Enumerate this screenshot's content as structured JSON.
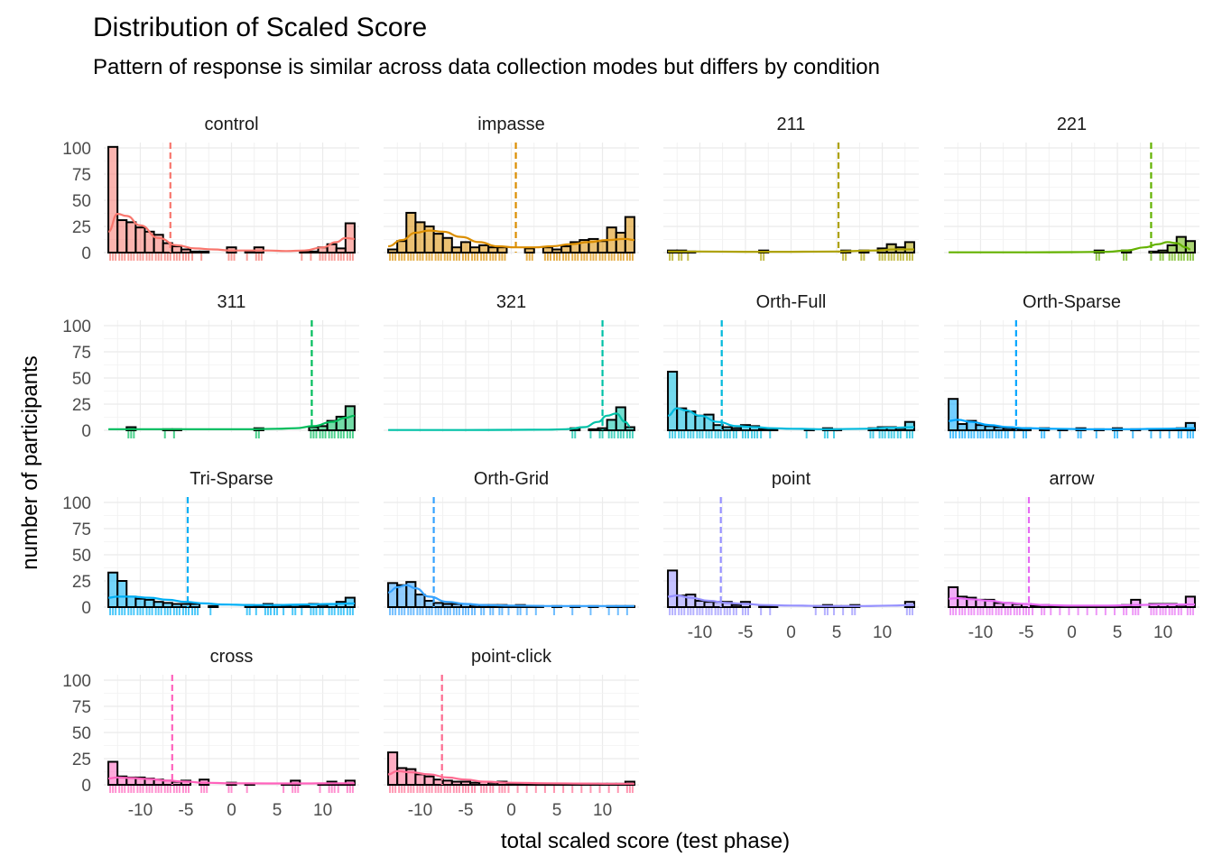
{
  "title": "Distribution of Scaled Score",
  "subtitle": "Pattern of response is similar across data collection modes but differs by condition",
  "xlabel": "total scaled score (test phase)",
  "ylabel": "number of participants",
  "chart_data": {
    "type": "bar",
    "description": "Faceted histograms with density curve, rug marks and dashed mean line per condition",
    "xlim": [
      -14,
      14
    ],
    "ylim": [
      0,
      100
    ],
    "x_ticks": [
      -10,
      -5,
      0,
      5,
      10
    ],
    "x_tick_labels": [
      "-10",
      "-5",
      "0",
      "5",
      "10"
    ],
    "y_ticks": [
      0,
      25,
      50,
      75,
      100
    ],
    "y_tick_labels": [
      "0",
      "25",
      "50",
      "75",
      "100"
    ],
    "bin_centers": [
      -13,
      -12,
      -11,
      -10,
      -9,
      -8,
      -7,
      -6,
      -5,
      -4,
      -3,
      -2,
      -1,
      0,
      1,
      2,
      3,
      4,
      5,
      6,
      7,
      8,
      9,
      10,
      11,
      12,
      13
    ],
    "grid": true,
    "legend": "none",
    "facets": [
      {
        "name": "control",
        "color": "#F8766D",
        "mean": -6.7,
        "counts": [
          101,
          31,
          29,
          24,
          20,
          17,
          9,
          6,
          3,
          1,
          1,
          0,
          0,
          5,
          0,
          1,
          5,
          0,
          0,
          0,
          0,
          1,
          1,
          5,
          8,
          4,
          28
        ],
        "density": [
          [
            -13.5,
            20
          ],
          [
            -12.5,
            37
          ],
          [
            -11.5,
            35
          ],
          [
            -10,
            26
          ],
          [
            -8,
            14
          ],
          [
            -6,
            7
          ],
          [
            -4,
            4
          ],
          [
            -2,
            3
          ],
          [
            0,
            2
          ],
          [
            2,
            2
          ],
          [
            4,
            2
          ],
          [
            6,
            1.5
          ],
          [
            8,
            2
          ],
          [
            10,
            5
          ],
          [
            11.5,
            10
          ],
          [
            12.5,
            14
          ],
          [
            13.5,
            13
          ]
        ]
      },
      {
        "name": "impasse",
        "color": "#DB8E00",
        "mean": 0.5,
        "counts": [
          3,
          11,
          38,
          29,
          25,
          18,
          14,
          5,
          10,
          5,
          7,
          5,
          5,
          0,
          0,
          4,
          0,
          5,
          3,
          6,
          10,
          12,
          13,
          11,
          24,
          19,
          34
        ],
        "density": [
          [
            -13.5,
            6
          ],
          [
            -12,
            12
          ],
          [
            -10.5,
            19
          ],
          [
            -9,
            21
          ],
          [
            -7.5,
            20
          ],
          [
            -5.5,
            15
          ],
          [
            -3.5,
            10
          ],
          [
            -1.5,
            6
          ],
          [
            0.5,
            5
          ],
          [
            2.5,
            5
          ],
          [
            4.5,
            6
          ],
          [
            6.5,
            8
          ],
          [
            8.5,
            10
          ],
          [
            10.5,
            12
          ],
          [
            12.5,
            13
          ],
          [
            13.5,
            12
          ]
        ]
      },
      {
        "name": "211",
        "color": "#AEA200",
        "mean": 5.2,
        "counts": [
          2,
          2,
          1,
          0,
          0,
          0,
          0,
          0,
          0,
          0,
          2,
          0,
          0,
          0,
          0,
          0,
          0,
          0,
          0,
          2,
          0,
          2,
          0,
          4,
          8,
          5,
          10
        ],
        "density": [
          [
            -13.5,
            1
          ],
          [
            -10,
            1
          ],
          [
            -5,
            0.8
          ],
          [
            0,
            0.8
          ],
          [
            5,
            1
          ],
          [
            9,
            2
          ],
          [
            11.5,
            3
          ],
          [
            13.5,
            3
          ]
        ]
      },
      {
        "name": "221",
        "color": "#64B200",
        "mean": 8.7,
        "counts": [
          0,
          0,
          0,
          0,
          0,
          0,
          0,
          0,
          0,
          0,
          0,
          0,
          0,
          0,
          0,
          0,
          2,
          0,
          0,
          2,
          0,
          0,
          1,
          2,
          7,
          15,
          11
        ],
        "density": [
          [
            -13.5,
            0.3
          ],
          [
            -5,
            0.3
          ],
          [
            0,
            0.4
          ],
          [
            4,
            0.8
          ],
          [
            6,
            2
          ],
          [
            8,
            5
          ],
          [
            9.5,
            8
          ],
          [
            10.5,
            10
          ],
          [
            11.5,
            9
          ],
          [
            12.5,
            5
          ],
          [
            13,
            3
          ]
        ]
      },
      {
        "name": "311",
        "color": "#00BD5C",
        "mean": 8.8,
        "counts": [
          0,
          0,
          3,
          0,
          0,
          0,
          1,
          1,
          0,
          0,
          0,
          0,
          0,
          0,
          0,
          0,
          2,
          0,
          0,
          0,
          0,
          0,
          3,
          4,
          9,
          13,
          23
        ],
        "density": [
          [
            -13.5,
            1
          ],
          [
            -10,
            1
          ],
          [
            -6,
            1
          ],
          [
            -2,
            1
          ],
          [
            2,
            1
          ],
          [
            5,
            1.5
          ],
          [
            7,
            2
          ],
          [
            9,
            4
          ],
          [
            11,
            8
          ],
          [
            12.5,
            12
          ],
          [
            13.5,
            14
          ]
        ]
      },
      {
        "name": "321",
        "color": "#00C1A7",
        "mean": 10,
        "counts": [
          0,
          0,
          0,
          0,
          0,
          0,
          0,
          0,
          0,
          0,
          0,
          0,
          0,
          0,
          0,
          0,
          0,
          0,
          0,
          0,
          2,
          0,
          1,
          2,
          10,
          22,
          3
        ],
        "density": [
          [
            -13.5,
            0.3
          ],
          [
            -5,
            0.3
          ],
          [
            0,
            0.4
          ],
          [
            4,
            0.6
          ],
          [
            6,
            1
          ],
          [
            8,
            3
          ],
          [
            9.5,
            8
          ],
          [
            10.5,
            14
          ],
          [
            11.5,
            16
          ],
          [
            12.5,
            8
          ],
          [
            13,
            4
          ]
        ]
      },
      {
        "name": "Orth-Full",
        "color": "#00BADE",
        "mean": -7.6,
        "counts": [
          56,
          21,
          18,
          14,
          15,
          5,
          3,
          2,
          5,
          4,
          1,
          1,
          0,
          0,
          0,
          1,
          0,
          2,
          1,
          0,
          0,
          0,
          2,
          3,
          3,
          2,
          8
        ],
        "density": [
          [
            -13.5,
            14
          ],
          [
            -12.5,
            21
          ],
          [
            -11.5,
            19
          ],
          [
            -10,
            14
          ],
          [
            -8,
            8
          ],
          [
            -6,
            4
          ],
          [
            -4,
            3
          ],
          [
            -2,
            2
          ],
          [
            0,
            1.5
          ],
          [
            4,
            1
          ],
          [
            8,
            1.5
          ],
          [
            11,
            2.5
          ],
          [
            13.5,
            3
          ]
        ]
      },
      {
        "name": "Orth-Sparse",
        "color": "#00A6FF",
        "mean": -6.1,
        "counts": [
          30,
          6,
          9,
          5,
          4,
          3,
          2,
          1,
          2,
          0,
          2,
          0,
          1,
          0,
          2,
          0,
          1,
          0,
          2,
          0,
          1,
          0,
          1,
          1,
          1,
          2,
          7
        ],
        "density": [
          [
            -13.5,
            9
          ],
          [
            -12.5,
            10
          ],
          [
            -11,
            8
          ],
          [
            -9,
            5
          ],
          [
            -7,
            3
          ],
          [
            -5,
            2
          ],
          [
            -2,
            1.5
          ],
          [
            2,
            1
          ],
          [
            6,
            1
          ],
          [
            10,
            1.5
          ],
          [
            13.5,
            2
          ]
        ]
      },
      {
        "name": "Tri-Sparse",
        "color": "#00B0F6",
        "mean": -4.8,
        "counts": [
          33,
          25,
          10,
          8,
          7,
          5,
          4,
          3,
          3,
          3,
          0,
          1,
          0,
          0,
          0,
          2,
          1,
          3,
          2,
          1,
          2,
          1,
          3,
          2,
          3,
          5,
          9
        ],
        "density": [
          [
            -13.5,
            9
          ],
          [
            -12.5,
            10
          ],
          [
            -11,
            10
          ],
          [
            -9,
            9
          ],
          [
            -7,
            7
          ],
          [
            -5,
            5
          ],
          [
            -3,
            3.5
          ],
          [
            -1,
            2.5
          ],
          [
            2,
            2
          ],
          [
            5,
            2
          ],
          [
            8,
            2.5
          ],
          [
            11,
            3
          ],
          [
            13.5,
            3.5
          ]
        ]
      },
      {
        "name": "Orth-Grid",
        "color": "#35A2FF",
        "mean": -8.5,
        "counts": [
          23,
          21,
          24,
          12,
          6,
          4,
          3,
          3,
          3,
          2,
          2,
          2,
          2,
          1,
          2,
          1,
          1,
          0,
          1,
          0,
          1,
          0,
          1,
          0,
          1,
          1,
          1
        ],
        "density": [
          [
            -13.5,
            14
          ],
          [
            -12.5,
            19
          ],
          [
            -11.5,
            21
          ],
          [
            -10.5,
            18
          ],
          [
            -9,
            10
          ],
          [
            -7,
            5
          ],
          [
            -5,
            3
          ],
          [
            -3,
            2
          ],
          [
            0,
            1.5
          ],
          [
            5,
            1
          ],
          [
            10,
            1
          ],
          [
            13.5,
            1
          ]
        ]
      },
      {
        "name": "point",
        "color": "#9590FF",
        "mean": -7.7,
        "counts": [
          35,
          11,
          12,
          6,
          5,
          5,
          5,
          2,
          5,
          0,
          1,
          1,
          0,
          0,
          0,
          0,
          1,
          2,
          1,
          1,
          2,
          0,
          0,
          0,
          0,
          0,
          5
        ],
        "density": [
          [
            -13.5,
            10
          ],
          [
            -12.5,
            11
          ],
          [
            -11,
            9
          ],
          [
            -9,
            6
          ],
          [
            -7,
            4
          ],
          [
            -5,
            3
          ],
          [
            -3,
            2
          ],
          [
            0,
            1.5
          ],
          [
            4,
            1
          ],
          [
            8,
            1
          ],
          [
            11,
            1.5
          ],
          [
            13.5,
            2
          ]
        ]
      },
      {
        "name": "arrow",
        "color": "#E76BF3",
        "mean": -4.7,
        "counts": [
          19,
          10,
          9,
          7,
          7,
          4,
          4,
          3,
          3,
          1,
          2,
          1,
          1,
          1,
          1,
          1,
          1,
          1,
          1,
          2,
          7,
          0,
          3,
          3,
          3,
          2,
          10
        ],
        "density": [
          [
            -13.5,
            8
          ],
          [
            -12.5,
            8.5
          ],
          [
            -11,
            7.5
          ],
          [
            -9,
            6
          ],
          [
            -7,
            4
          ],
          [
            -5,
            3
          ],
          [
            -3,
            2
          ],
          [
            0,
            1.5
          ],
          [
            4,
            1.5
          ],
          [
            7,
            2
          ],
          [
            10,
            2.5
          ],
          [
            13.5,
            2.5
          ]
        ]
      },
      {
        "name": "cross",
        "color": "#FF62BC",
        "mean": -6.5,
        "counts": [
          22,
          8,
          7,
          7,
          6,
          5,
          4,
          3,
          4,
          0,
          5,
          0,
          0,
          2,
          0,
          1,
          0,
          0,
          0,
          1,
          4,
          0,
          0,
          1,
          3,
          1,
          4
        ],
        "density": [
          [
            -13.5,
            6
          ],
          [
            -12.5,
            7
          ],
          [
            -11,
            6.5
          ],
          [
            -9,
            5.5
          ],
          [
            -7,
            4
          ],
          [
            -5,
            3
          ],
          [
            -3,
            2
          ],
          [
            0,
            1.5
          ],
          [
            4,
            1.3
          ],
          [
            8,
            1.3
          ],
          [
            11,
            1.5
          ],
          [
            13.5,
            1.5
          ]
        ]
      },
      {
        "name": "point-click",
        "color": "#FF6C91",
        "mean": -7.6,
        "counts": [
          31,
          16,
          15,
          10,
          8,
          5,
          4,
          3,
          3,
          2,
          3,
          2,
          3,
          1,
          1,
          1,
          1,
          1,
          1,
          1,
          1,
          1,
          1,
          1,
          1,
          1,
          3
        ],
        "density": [
          [
            -13.5,
            10
          ],
          [
            -12.5,
            13
          ],
          [
            -11,
            12
          ],
          [
            -9,
            10
          ],
          [
            -7,
            7
          ],
          [
            -5,
            5
          ],
          [
            -3,
            3
          ],
          [
            0,
            2
          ],
          [
            4,
            1.5
          ],
          [
            8,
            1.2
          ],
          [
            11,
            1
          ],
          [
            13.5,
            1
          ]
        ]
      }
    ]
  }
}
